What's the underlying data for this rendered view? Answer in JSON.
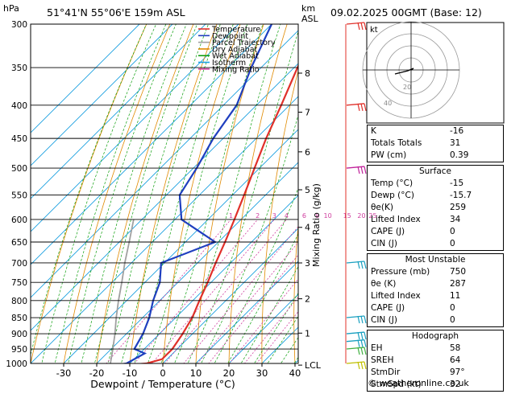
{
  "header": {
    "pressure_unit": "hPa",
    "location": "51°41'N 55°06'E 159m ASL",
    "km_unit": "km",
    "asl_unit": "ASL",
    "valid_time": "09.02.2025 00GMT (Base: 12)"
  },
  "footer": {
    "credit": "© weatheronline.co.uk"
  },
  "chart_data": {
    "type": "skew-t log-p diagram",
    "xlabel": "Dewpoint / Temperature (°C)",
    "mixing_ratio_label": "Mixing Ratio (g/kg)",
    "x_ticks": [
      -30,
      -20,
      -10,
      0,
      10,
      20,
      30,
      40
    ],
    "pressure_levels": [
      300,
      350,
      400,
      450,
      500,
      550,
      600,
      650,
      700,
      750,
      800,
      850,
      900,
      950,
      1000
    ],
    "altitude_km_ticks": [
      {
        "label": "8",
        "p": 357
      },
      {
        "label": "7",
        "p": 410
      },
      {
        "label": "6",
        "p": 472
      },
      {
        "label": "5",
        "p": 540
      },
      {
        "label": "4",
        "p": 617
      },
      {
        "label": "3",
        "p": 700
      },
      {
        "label": "2",
        "p": 795
      },
      {
        "label": "1",
        "p": 898
      },
      {
        "label": "LCL",
        "p": 1006
      }
    ],
    "mixing_ratio_labels": [
      "1",
      "2",
      "3",
      "4",
      "6",
      "8",
      "10",
      "15",
      "20",
      "25"
    ],
    "mixing_ratio_values": [
      1,
      2,
      3,
      4,
      6,
      8,
      10,
      15,
      20,
      25
    ],
    "legend": [
      {
        "name": "Temperature",
        "color": "#e0302a"
      },
      {
        "name": "Dewpoint",
        "color": "#1f3fbf"
      },
      {
        "name": "Parcel Trajectory",
        "color": "#a0a0a0"
      },
      {
        "name": "Dry Adiabat",
        "color": "#e08a00"
      },
      {
        "name": "Wet Adiabat",
        "color": "#10a010"
      },
      {
        "name": "Isotherm",
        "color": "#1aa0e0"
      },
      {
        "name": "Mixing Ratio",
        "color": "#d040a0"
      }
    ],
    "temperature_profile": [
      {
        "p": 1010,
        "t": -15
      },
      {
        "p": 1000,
        "t": -5
      },
      {
        "p": 985,
        "t": -1.5
      },
      {
        "p": 950,
        "t": -1.5
      },
      {
        "p": 900,
        "t": -3
      },
      {
        "p": 850,
        "t": -5
      },
      {
        "p": 800,
        "t": -8
      },
      {
        "p": 750,
        "t": -11
      },
      {
        "p": 700,
        "t": -14.5
      },
      {
        "p": 650,
        "t": -18
      },
      {
        "p": 600,
        "t": -22
      },
      {
        "p": 550,
        "t": -26.5
      },
      {
        "p": 500,
        "t": -31.5
      },
      {
        "p": 450,
        "t": -37
      },
      {
        "p": 400,
        "t": -42.5
      },
      {
        "p": 350,
        "t": -49
      },
      {
        "p": 300,
        "t": -56
      }
    ],
    "dewpoint_profile": [
      {
        "p": 1010,
        "t": -15.7
      },
      {
        "p": 1000,
        "t": -11
      },
      {
        "p": 965,
        "t": -8.5
      },
      {
        "p": 950,
        "t": -13
      },
      {
        "p": 900,
        "t": -15
      },
      {
        "p": 850,
        "t": -18
      },
      {
        "p": 800,
        "t": -22
      },
      {
        "p": 750,
        "t": -25.5
      },
      {
        "p": 700,
        "t": -31
      },
      {
        "p": 650,
        "t": -21
      },
      {
        "p": 600,
        "t": -38
      },
      {
        "p": 550,
        "t": -46
      },
      {
        "p": 500,
        "t": -49
      },
      {
        "p": 450,
        "t": -53
      },
      {
        "p": 400,
        "t": -56
      },
      {
        "p": 350,
        "t": -63
      },
      {
        "p": 300,
        "t": -70
      }
    ],
    "parcel_profile": [
      {
        "p": 1005,
        "t": -15.5
      },
      {
        "p": 950,
        "t": -19.5
      },
      {
        "p": 900,
        "t": -23.5
      },
      {
        "p": 850,
        "t": -28
      },
      {
        "p": 800,
        "t": -32.5
      },
      {
        "p": 750,
        "t": -37
      },
      {
        "p": 700,
        "t": -42
      },
      {
        "p": 650,
        "t": -47
      },
      {
        "p": 600,
        "t": -52.5
      }
    ],
    "wind_barbs": [
      {
        "p": 300,
        "color": "#e0302a"
      },
      {
        "p": 400,
        "color": "#e0302a"
      },
      {
        "p": 500,
        "color": "#c0209a"
      },
      {
        "p": 700,
        "color": "#1aa0c0"
      },
      {
        "p": 850,
        "color": "#1aa0c0"
      },
      {
        "p": 900,
        "color": "#1aa0c0"
      },
      {
        "p": 925,
        "color": "#1aa0c0"
      },
      {
        "p": 950,
        "color": "#40b040"
      },
      {
        "p": 1000,
        "color": "#c0c000"
      }
    ]
  },
  "hodograph": {
    "unit_label": "kt",
    "ring_labels": [
      "20",
      "40"
    ],
    "trace": [
      [
        0,
        0
      ],
      [
        3,
        -2
      ],
      [
        -4,
        1
      ],
      [
        -12,
        3
      ],
      [
        -20,
        5
      ]
    ]
  },
  "indices": {
    "rows": [
      {
        "label": "K",
        "value": "-16"
      },
      {
        "label": "Totals Totals",
        "value": "31"
      },
      {
        "label": "PW (cm)",
        "value": "0.39"
      }
    ]
  },
  "surface": {
    "title": "Surface",
    "rows": [
      {
        "label": "Temp (°C)",
        "value": "-15"
      },
      {
        "label": "Dewp (°C)",
        "value": "-15.7"
      },
      {
        "label": "θe(K)",
        "value": "259"
      },
      {
        "label": "Lifted Index",
        "value": "34"
      },
      {
        "label": "CAPE (J)",
        "value": "0"
      },
      {
        "label": "CIN (J)",
        "value": "0"
      }
    ]
  },
  "most_unstable": {
    "title": "Most Unstable",
    "rows": [
      {
        "label": "Pressure (mb)",
        "value": "750"
      },
      {
        "label": "θe (K)",
        "value": "287"
      },
      {
        "label": "Lifted Index",
        "value": "11"
      },
      {
        "label": "CAPE (J)",
        "value": "0"
      },
      {
        "label": "CIN (J)",
        "value": "0"
      }
    ]
  },
  "hodograph_box": {
    "title": "Hodograph",
    "rows": [
      {
        "label": "EH",
        "value": "58"
      },
      {
        "label": "SREH",
        "value": "64"
      },
      {
        "label": "StmDir",
        "value": "97°"
      },
      {
        "label": "StmSpd (kt)",
        "value": "32"
      }
    ]
  }
}
